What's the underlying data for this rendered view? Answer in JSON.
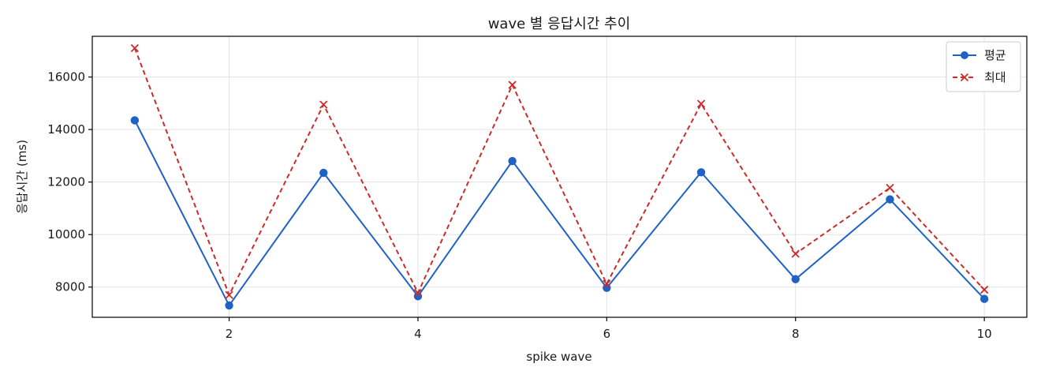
{
  "chart_data": {
    "type": "line",
    "title": "wave 별 응답시간 추이",
    "xlabel": "spike wave",
    "ylabel": "응답시간 (ms)",
    "x": [
      1,
      2,
      3,
      4,
      5,
      6,
      7,
      8,
      9,
      10
    ],
    "xlim": [
      0.55,
      10.45
    ],
    "ylim": [
      6850,
      17550
    ],
    "xticks": [
      2,
      4,
      6,
      8,
      10
    ],
    "yticks": [
      8000,
      10000,
      12000,
      14000,
      16000
    ],
    "grid": true,
    "legend_position": "top-right",
    "series": [
      {
        "name": "평균",
        "values": [
          14350,
          7300,
          12350,
          7650,
          12800,
          7970,
          12370,
          8300,
          11340,
          7550
        ],
        "color": "#1f62c4",
        "marker": "circle",
        "line_style": "solid"
      },
      {
        "name": "최대",
        "values": [
          17100,
          7700,
          14950,
          7780,
          15700,
          8120,
          14980,
          9270,
          11780,
          7900
        ],
        "color": "#cc2b2b",
        "marker": "x",
        "line_style": "dashed"
      }
    ]
  }
}
